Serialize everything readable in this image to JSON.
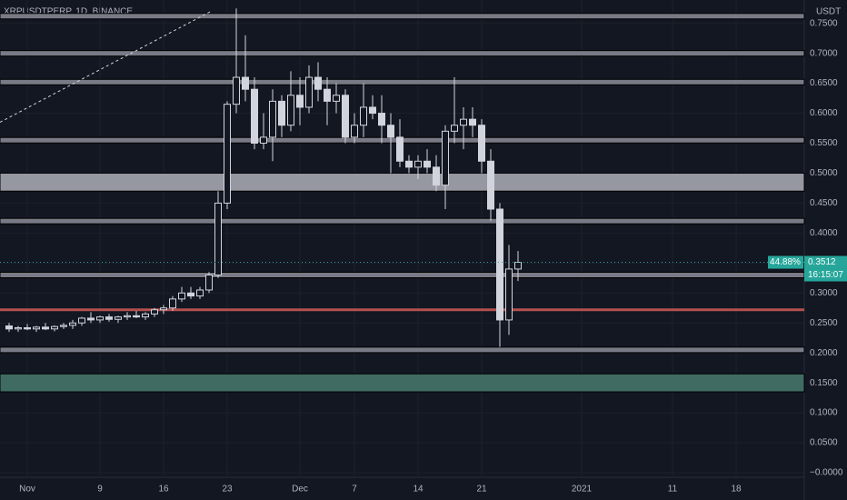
{
  "chart_data": {
    "type": "candlestick",
    "title": "XRPUSDTPERP, 1D, BINANCE",
    "y_axis_label": "USDT",
    "x": [
      -2,
      -1,
      0,
      1,
      2,
      3,
      4,
      5,
      6,
      7,
      8,
      9,
      10,
      11,
      12,
      13,
      14,
      15,
      16,
      17,
      18,
      19,
      20,
      21,
      22,
      23,
      24,
      25,
      26,
      27,
      28,
      29,
      30,
      31,
      32,
      33,
      34,
      35,
      36,
      37,
      38,
      39,
      40,
      41,
      42,
      43,
      44,
      45,
      46,
      47,
      48,
      49,
      50,
      51,
      52,
      53,
      54
    ],
    "open": [
      0.245,
      0.24,
      0.242,
      0.24,
      0.243,
      0.24,
      0.244,
      0.246,
      0.25,
      0.258,
      0.255,
      0.26,
      0.256,
      0.26,
      0.262,
      0.26,
      0.265,
      0.272,
      0.275,
      0.29,
      0.3,
      0.295,
      0.305,
      0.33,
      0.45,
      0.615,
      0.66,
      0.64,
      0.55,
      0.56,
      0.62,
      0.58,
      0.63,
      0.61,
      0.66,
      0.64,
      0.62,
      0.63,
      0.56,
      0.58,
      0.61,
      0.6,
      0.58,
      0.56,
      0.52,
      0.51,
      0.52,
      0.51,
      0.48,
      0.57,
      0.58,
      0.59,
      0.58,
      0.52,
      0.44,
      0.255,
      0.34
    ],
    "high": [
      0.25,
      0.245,
      0.248,
      0.245,
      0.25,
      0.246,
      0.25,
      0.255,
      0.26,
      0.268,
      0.262,
      0.265,
      0.262,
      0.268,
      0.27,
      0.268,
      0.275,
      0.28,
      0.295,
      0.31,
      0.31,
      0.31,
      0.335,
      0.47,
      0.62,
      0.775,
      0.73,
      0.66,
      0.6,
      0.64,
      0.63,
      0.67,
      0.66,
      0.68,
      0.685,
      0.66,
      0.65,
      0.64,
      0.6,
      0.65,
      0.63,
      0.63,
      0.6,
      0.59,
      0.53,
      0.53,
      0.54,
      0.53,
      0.58,
      0.66,
      0.61,
      0.61,
      0.59,
      0.54,
      0.45,
      0.38,
      0.37
    ],
    "low": [
      0.235,
      0.235,
      0.238,
      0.235,
      0.238,
      0.236,
      0.24,
      0.24,
      0.245,
      0.25,
      0.25,
      0.252,
      0.25,
      0.255,
      0.258,
      0.255,
      0.26,
      0.265,
      0.27,
      0.285,
      0.29,
      0.29,
      0.3,
      0.325,
      0.44,
      0.6,
      0.62,
      0.54,
      0.54,
      0.52,
      0.56,
      0.57,
      0.58,
      0.6,
      0.62,
      0.58,
      0.6,
      0.55,
      0.55,
      0.56,
      0.59,
      0.55,
      0.5,
      0.51,
      0.5,
      0.49,
      0.5,
      0.47,
      0.44,
      0.55,
      0.54,
      0.56,
      0.5,
      0.42,
      0.21,
      0.23,
      0.32
    ],
    "close": [
      0.24,
      0.242,
      0.24,
      0.243,
      0.24,
      0.244,
      0.246,
      0.25,
      0.258,
      0.255,
      0.26,
      0.256,
      0.26,
      0.262,
      0.26,
      0.265,
      0.272,
      0.275,
      0.29,
      0.3,
      0.295,
      0.305,
      0.33,
      0.45,
      0.615,
      0.66,
      0.64,
      0.55,
      0.56,
      0.62,
      0.58,
      0.63,
      0.61,
      0.66,
      0.64,
      0.62,
      0.63,
      0.56,
      0.58,
      0.61,
      0.6,
      0.58,
      0.56,
      0.52,
      0.51,
      0.52,
      0.51,
      0.48,
      0.57,
      0.58,
      0.59,
      0.58,
      0.52,
      0.44,
      0.255,
      0.34,
      0.3512
    ],
    "candle_color": "#d1d4dc",
    "xlim": [
      -3,
      85.5
    ],
    "ylim": [
      -0.0076,
      0.789
    ],
    "xticks": [
      {
        "value": 0,
        "label": "Nov"
      },
      {
        "value": 8,
        "label": "9"
      },
      {
        "value": 15,
        "label": "16"
      },
      {
        "value": 22,
        "label": "23"
      },
      {
        "value": 30,
        "label": "Dec"
      },
      {
        "value": 36,
        "label": "7"
      },
      {
        "value": 43,
        "label": "14"
      },
      {
        "value": 50,
        "label": "21"
      },
      {
        "value": 61,
        "label": "2021"
      },
      {
        "value": 71,
        "label": "11"
      },
      {
        "value": 78,
        "label": "18"
      }
    ],
    "yticks": [
      {
        "value": 0.75,
        "label": "0.7500"
      },
      {
        "value": 0.7,
        "label": "0.7000"
      },
      {
        "value": 0.65,
        "label": "0.6500"
      },
      {
        "value": 0.6,
        "label": "0.6000"
      },
      {
        "value": 0.55,
        "label": "0.5500"
      },
      {
        "value": 0.5,
        "label": "0.5000"
      },
      {
        "value": 0.45,
        "label": "0.4500"
      },
      {
        "value": 0.4,
        "label": "0.4000"
      },
      {
        "value": 0.35,
        "label": "0.3500"
      },
      {
        "value": 0.3,
        "label": "0.3000"
      },
      {
        "value": 0.25,
        "label": "0.2500"
      },
      {
        "value": 0.2,
        "label": "0.2000"
      },
      {
        "value": 0.15,
        "label": "0.1500"
      },
      {
        "value": 0.1,
        "label": "0.1000"
      },
      {
        "value": 0.05,
        "label": "0.0500"
      },
      {
        "value": 0,
        "label": "−0.0000"
      }
    ],
    "grid": true,
    "levels": [
      0.762,
      0.7,
      0.652,
      0.555,
      0.42,
      0.33,
      0.205
    ],
    "level_color": "#787b86",
    "zones": [
      {
        "low": 0.47,
        "high": 0.5,
        "color": "#9598a1"
      },
      {
        "low": 0.135,
        "high": 0.165,
        "color": "#3f6b62"
      }
    ],
    "support": {
      "value": 0.272,
      "color": "#b2504f"
    },
    "trendline": {
      "x": [
        -3,
        20.2
      ],
      "y": [
        0.585,
        0.77
      ]
    },
    "price_line": {
      "value": 0.3512,
      "change": "44.88%",
      "countdown": "16:15:07",
      "color": "#26a69a"
    }
  }
}
